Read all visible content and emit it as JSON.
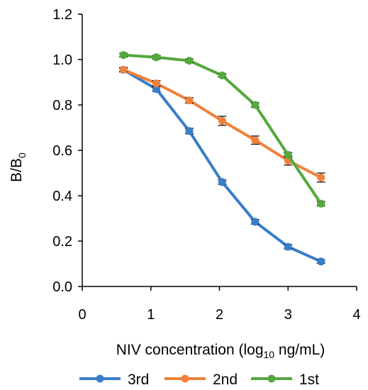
{
  "chart_data": {
    "type": "line",
    "xlabel": {
      "main": "NIV concentration (log",
      "sub": "10",
      "tail": " ng/mL)"
    },
    "ylabel": {
      "main": "B/B",
      "sub": "0"
    },
    "xlim": [
      0,
      4
    ],
    "ylim": [
      0,
      1.2
    ],
    "x_ticks": [
      "0",
      "1",
      "2",
      "3",
      "4"
    ],
    "y_ticks": [
      "0.0",
      "0.2",
      "0.4",
      "0.6",
      "0.8",
      "1.0",
      "1.2"
    ],
    "grid": false,
    "legend_position": "bottom",
    "x": [
      0.6,
      1.08,
      1.56,
      2.04,
      2.52,
      3.0,
      3.48
    ],
    "series": [
      {
        "name": "3rd",
        "color": "#3a7dc8",
        "values": [
          0.955,
          0.87,
          0.685,
          0.46,
          0.285,
          0.175,
          0.11
        ],
        "errors": [
          0.01,
          0.01,
          0.012,
          0.01,
          0.01,
          0.01,
          0.008
        ]
      },
      {
        "name": "2nd",
        "color": "#f0813a",
        "values": [
          0.955,
          0.895,
          0.82,
          0.73,
          0.645,
          0.555,
          0.48
        ],
        "errors": [
          0.008,
          0.012,
          0.012,
          0.02,
          0.018,
          0.02,
          0.02
        ]
      },
      {
        "name": "1st",
        "color": "#54a83c",
        "values": [
          1.02,
          1.01,
          0.995,
          0.93,
          0.8,
          0.58,
          0.365
        ],
        "errors": [
          0.008,
          0.008,
          0.008,
          0.008,
          0.01,
          0.01,
          0.01
        ]
      }
    ]
  }
}
